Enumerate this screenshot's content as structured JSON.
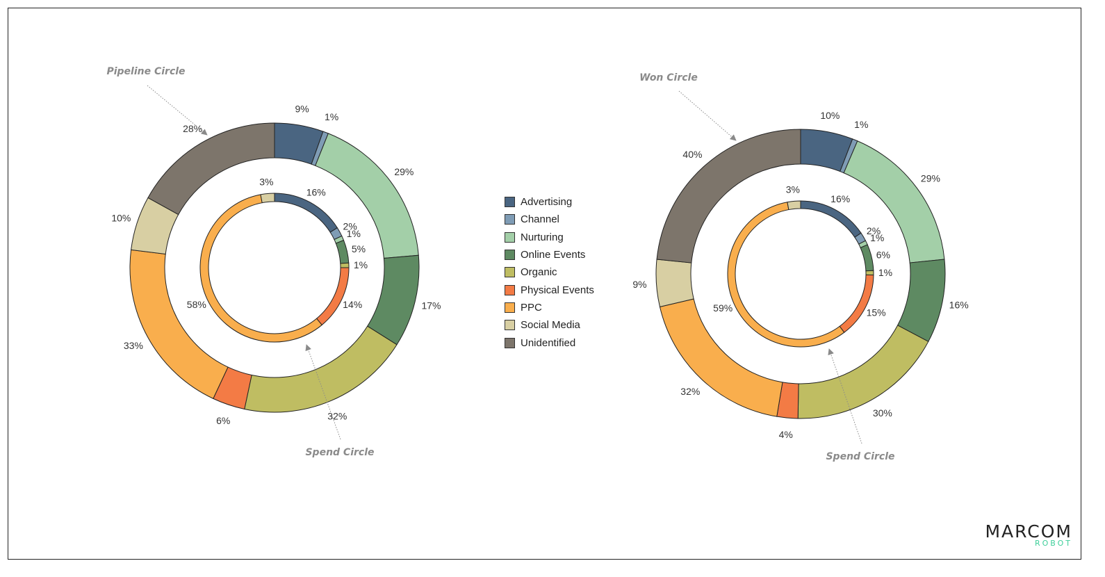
{
  "legend": [
    {
      "label": "Advertising",
      "color": "#4a6581"
    },
    {
      "label": "Channel",
      "color": "#7f9cb5"
    },
    {
      "label": "Nurturing",
      "color": "#a3cfa8"
    },
    {
      "label": "Online Events",
      "color": "#5e8a62"
    },
    {
      "label": "Organic",
      "color": "#bfbd62"
    },
    {
      "label": "Physical Events",
      "color": "#f37b45"
    },
    {
      "label": "PPC",
      "color": "#f9ae4d"
    },
    {
      "label": "Social Media",
      "color": "#d8cfa3"
    },
    {
      "label": "Unidentified",
      "color": "#7d756b"
    }
  ],
  "annotations": {
    "left_outer": "Pipeline Circle",
    "left_inner": "Spend Circle",
    "right_outer": "Won Circle",
    "right_inner": "Spend Circle"
  },
  "logo": {
    "main": "MARCOM",
    "sub": "ROBOT"
  },
  "chart_data": [
    {
      "type": "pie",
      "style": "double donut",
      "categories": [
        "Advertising",
        "Channel",
        "Nurturing",
        "Online Events",
        "Organic",
        "Physical Events",
        "PPC",
        "Social Media",
        "Unidentified"
      ],
      "outer": {
        "name": "Pipeline Circle",
        "values": [
          9,
          1,
          29,
          17,
          32,
          6,
          33,
          10,
          28
        ]
      },
      "inner": {
        "name": "Spend Circle",
        "values": [
          16,
          2,
          1,
          5,
          1,
          14,
          58,
          3,
          0
        ]
      }
    },
    {
      "type": "pie",
      "style": "double donut",
      "categories": [
        "Advertising",
        "Channel",
        "Nurturing",
        "Online Events",
        "Organic",
        "Physical Events",
        "PPC",
        "Social Media",
        "Unidentified"
      ],
      "outer": {
        "name": "Won Circle",
        "values": [
          10,
          1,
          29,
          16,
          30,
          4,
          32,
          9,
          40
        ]
      },
      "inner": {
        "name": "Spend Circle",
        "values": [
          16,
          2,
          1,
          6,
          1,
          15,
          59,
          3,
          0
        ]
      }
    }
  ]
}
